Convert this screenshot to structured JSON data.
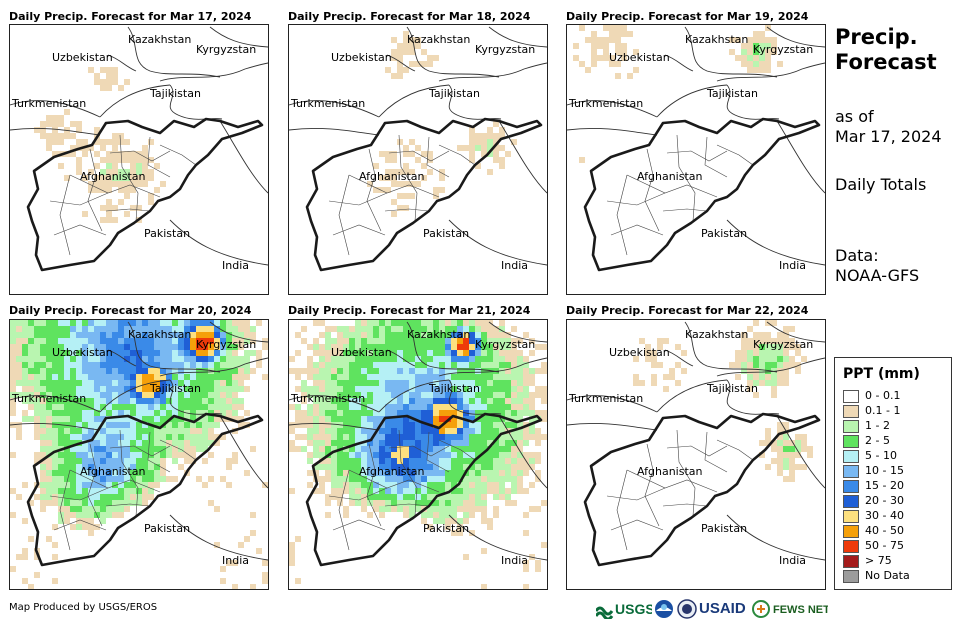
{
  "panels": [
    {
      "title": "Daily Precip. Forecast for Mar 17, 2024",
      "intensity": 0
    },
    {
      "title": "Daily Precip. Forecast for Mar 18, 2024",
      "intensity": 1
    },
    {
      "title": "Daily Precip. Forecast for Mar 19, 2024",
      "intensity": 2
    },
    {
      "title": "Daily Precip. Forecast for Mar 20, 2024",
      "intensity": 3
    },
    {
      "title": "Daily Precip. Forecast for Mar 21, 2024",
      "intensity": 4
    },
    {
      "title": "Daily Precip. Forecast for Mar 22, 2024",
      "intensity": 5
    }
  ],
  "map_labels": {
    "uzbekistan": "Uzbekistan",
    "kazakhstan": "Kazakhstan",
    "kyrgyzstan": "Kyrgyzstan",
    "tajikistan": "Tajikistan",
    "turkmenistan": "Turkmenistan",
    "afghanistan": "Afghanistan",
    "pakistan": "Pakistan",
    "india": "India"
  },
  "side": {
    "title_line1": "Precip.",
    "title_line2": "Forecast",
    "asof_line1": "as of",
    "asof_line2": "Mar 17, 2024",
    "totals": "Daily Totals",
    "data_line1": "Data:",
    "data_line2": "NOAA-GFS"
  },
  "legend": {
    "title": "PPT (mm)",
    "items": [
      {
        "label": "0 - 0.1",
        "color": "#ffffff"
      },
      {
        "label": "0.1 - 1",
        "color": "#efd9b6"
      },
      {
        "label": "1 - 2",
        "color": "#b9f5b0"
      },
      {
        "label": "2 - 5",
        "color": "#5fe35f"
      },
      {
        "label": "5 - 10",
        "color": "#b5f0f5"
      },
      {
        "label": "10 - 15",
        "color": "#79b8f2"
      },
      {
        "label": "15 - 20",
        "color": "#3a8ae8"
      },
      {
        "label": "20 - 30",
        "color": "#1f5fd6"
      },
      {
        "label": "30 - 40",
        "color": "#fde07f"
      },
      {
        "label": "40 - 50",
        "color": "#f5a00a"
      },
      {
        "label": "50 - 75",
        "color": "#ee3a0a"
      },
      {
        "label": "> 75",
        "color": "#a41b1b"
      },
      {
        "label": "No Data",
        "color": "#9c9c9c"
      }
    ]
  },
  "footer": "Map Produced by USGS/EROS",
  "logos": {
    "usgs": "USGS",
    "usaid": "USAID",
    "fewsnet": "FEWS NET"
  }
}
